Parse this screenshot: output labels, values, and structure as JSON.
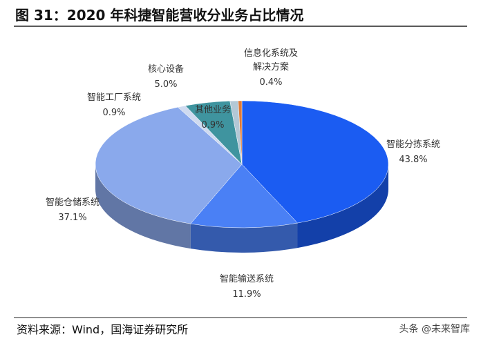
{
  "chart_data": {
    "type": "pie3d",
    "title": "图 31：2020 年科捷智能营收分业务占比情况",
    "categories": [
      "智能分拣系统",
      "智能输送系统",
      "智能仓储系统",
      "智能工厂系统",
      "核心设备",
      "其他业务",
      "信息化系统及\n解决方案"
    ],
    "values": [
      43.8,
      11.9,
      37.1,
      0.9,
      5.0,
      0.9,
      0.4
    ],
    "value_labels": [
      "43.8%",
      "11.9%",
      "37.1%",
      "0.9%",
      "5.0%",
      "0.9%",
      "0.4%"
    ],
    "colors": [
      "#1b5cf2",
      "#4a80f5",
      "#8aa9ec",
      "#cfdaf0",
      "#3f949f",
      "#b3c8d6",
      "#e07a36"
    ],
    "source": "资料来源：Wind，国海证券研究所",
    "watermark": "头条 @未来智库"
  }
}
